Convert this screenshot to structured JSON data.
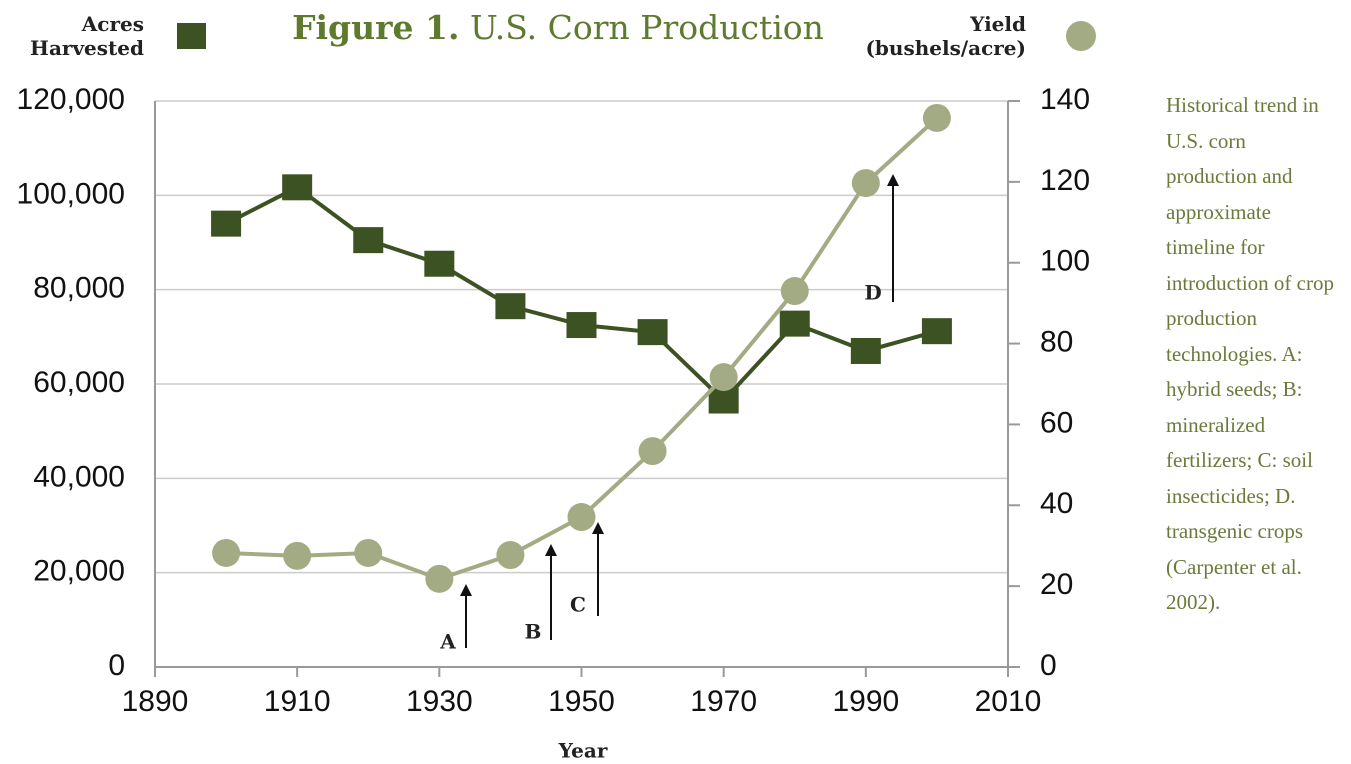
{
  "chart_data": {
    "type": "line",
    "title": "Figure 1.",
    "subtitle": "U.S. Corn Production",
    "xlabel": "Year",
    "caption": "Historical trend in U.S. corn production and approximate timeline for introduction of crop production technologies. A: hybrid seeds; B: mineralized fertilizers; C: soil insecticides; D. transgenic crops (Carpenter et al. 2002).",
    "x": [
      1900,
      1910,
      1920,
      1930,
      1940,
      1950,
      1960,
      1970,
      1980,
      1990,
      2000
    ],
    "series": [
      {
        "name": "Acres Harvested",
        "color": "#3d5222",
        "marker": "square",
        "values": [
          94000,
          101700,
          90500,
          85500,
          76500,
          72500,
          71000,
          56500,
          72800,
          67000,
          71200
        ]
      },
      {
        "name": "Yield (bushels/acre)",
        "color": "#a3ab84",
        "marker": "circle",
        "axis": "y2",
        "values": [
          28.2,
          27.5,
          28.2,
          21.8,
          27.7,
          37.1,
          53.4,
          71.7,
          93,
          119.7,
          135.8
        ]
      }
    ],
    "xlim": [
      1890,
      2010
    ],
    "xticks": [
      1890,
      1910,
      1930,
      1950,
      1970,
      1990,
      2010
    ],
    "ylim": [
      0,
      120000
    ],
    "yticks": [
      0,
      {
        "value": 20000,
        "label": "20,000"
      },
      {
        "value": 40000,
        "label": "40,000"
      },
      {
        "value": 60000,
        "label": "60,000"
      },
      {
        "value": 80000,
        "label": "80,000"
      },
      {
        "value": 100000,
        "label": "100,000"
      },
      {
        "value": 120000,
        "label": "120,000"
      }
    ],
    "y2lim": [
      0,
      140
    ],
    "y2ticks": [
      0,
      20,
      40,
      60,
      80,
      100,
      120,
      140
    ],
    "grid": true,
    "annotations": [
      "A",
      "B",
      "C",
      "D"
    ]
  }
}
